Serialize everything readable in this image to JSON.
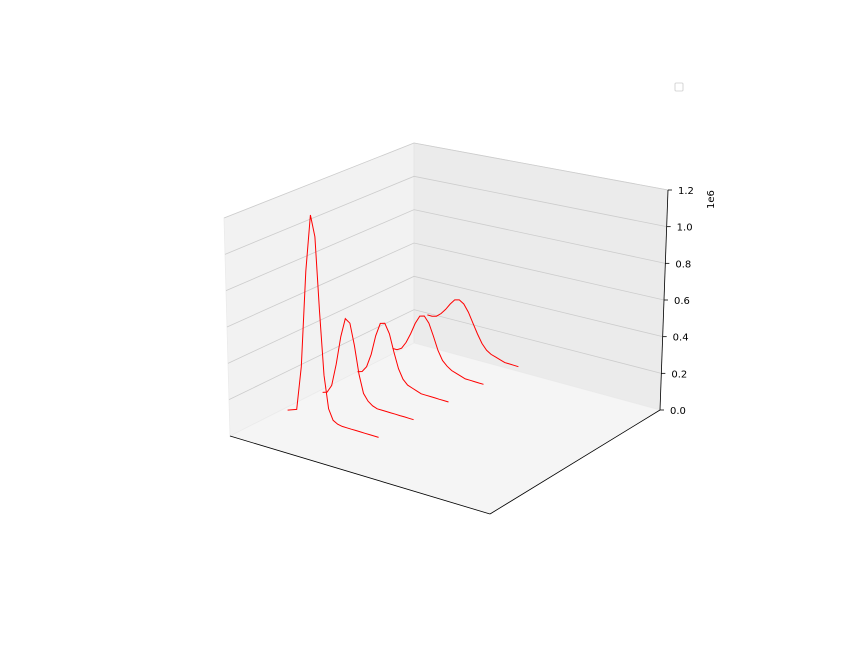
{
  "chart_data": {
    "type": "line",
    "title": "",
    "xlabel": "",
    "ylabel": "",
    "zlabel": "",
    "z_offset_text": "1e6",
    "z_ticks": [
      "0.0",
      "0.2",
      "0.4",
      "0.6",
      "0.8",
      "1.0",
      "1.2"
    ],
    "z_tick_values": [
      0.0,
      0.2,
      0.4,
      0.6,
      0.8,
      1.0,
      1.2
    ],
    "zlim": [
      0.0,
      1.2
    ],
    "grid": true,
    "legend": "top-right",
    "line_color": "#ff0000",
    "series": [
      {
        "x": [
          0.0,
          0.05,
          0.1,
          0.15,
          0.2,
          0.25,
          0.3,
          0.35,
          0.4,
          0.45,
          0.5,
          0.55,
          0.6,
          0.65,
          0.7,
          0.75,
          0.8,
          0.85,
          0.9,
          0.95,
          1.0
        ],
        "z": [
          0.0,
          0.01,
          0.02,
          0.28,
          0.85,
          1.19,
          1.07,
          0.64,
          0.27,
          0.08,
          0.02,
          0.005,
          0,
          0,
          0,
          0,
          0,
          0,
          0,
          0,
          0
        ]
      },
      {
        "x": [
          0.0,
          0.05,
          0.1,
          0.15,
          0.2,
          0.25,
          0.3,
          0.35,
          0.4,
          0.45,
          0.5,
          0.55,
          0.6,
          0.65,
          0.7,
          0.75,
          0.8,
          0.85,
          0.9,
          0.95,
          1.0
        ],
        "z": [
          0.0,
          0.01,
          0.06,
          0.2,
          0.38,
          0.5,
          0.48,
          0.35,
          0.18,
          0.07,
          0.03,
          0.01,
          0,
          0,
          0,
          0,
          0,
          0,
          0,
          0,
          0
        ]
      },
      {
        "x": [
          0.0,
          0.05,
          0.1,
          0.15,
          0.2,
          0.25,
          0.3,
          0.35,
          0.4,
          0.45,
          0.5,
          0.55,
          0.6,
          0.65,
          0.7,
          0.75,
          0.8,
          0.85,
          0.9,
          0.95,
          1.0
        ],
        "z": [
          0.02,
          0.03,
          0.07,
          0.16,
          0.29,
          0.38,
          0.39,
          0.33,
          0.22,
          0.12,
          0.06,
          0.03,
          0.02,
          0.01,
          0,
          0,
          0,
          0,
          0,
          0,
          0
        ]
      },
      {
        "x": [
          0.0,
          0.05,
          0.1,
          0.15,
          0.2,
          0.25,
          0.3,
          0.35,
          0.4,
          0.45,
          0.5,
          0.55,
          0.6,
          0.65,
          0.7,
          0.75,
          0.8,
          0.85,
          0.9,
          0.95,
          1.0
        ],
        "z": [
          0.06,
          0.06,
          0.08,
          0.13,
          0.2,
          0.28,
          0.34,
          0.35,
          0.31,
          0.23,
          0.14,
          0.08,
          0.05,
          0.03,
          0.02,
          0.01,
          0,
          0,
          0,
          0,
          0
        ]
      },
      {
        "x": [
          0.0,
          0.05,
          0.1,
          0.15,
          0.2,
          0.25,
          0.3,
          0.35,
          0.4,
          0.45,
          0.5,
          0.55,
          0.6,
          0.65,
          0.7,
          0.75,
          0.8,
          0.85,
          0.9,
          0.95,
          1.0
        ],
        "z": [
          0.18,
          0.18,
          0.19,
          0.22,
          0.26,
          0.31,
          0.35,
          0.36,
          0.34,
          0.29,
          0.22,
          0.15,
          0.09,
          0.05,
          0.03,
          0.02,
          0.01,
          0,
          0,
          0,
          0
        ]
      }
    ]
  }
}
